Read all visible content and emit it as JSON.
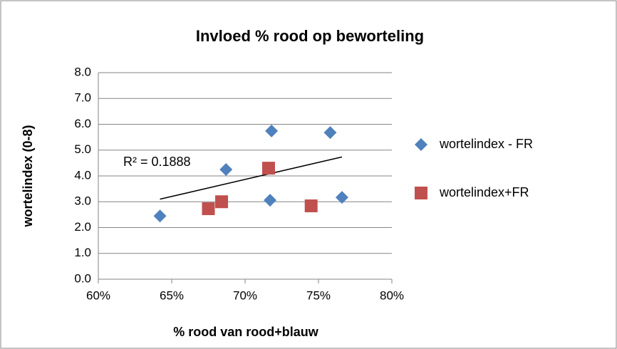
{
  "chart_data": {
    "type": "scatter",
    "title": "Invloed % rood op beworteling",
    "x_label": "% rood van rood+blauw",
    "y_label": "wortelindex (0-8)",
    "annotation": "R² = 0.1888",
    "series": [
      {
        "name": "wortelindex - FR",
        "color": "#4f81bd",
        "marker": "diamond",
        "x": [
          64.2,
          68.7,
          71.8,
          75.8,
          71.7,
          76.6
        ],
        "values": [
          2.45,
          4.25,
          5.74,
          5.68,
          3.06,
          3.17
        ]
      },
      {
        "name": "wortelindex+FR",
        "color": "#c0504d",
        "marker": "square",
        "x": [
          67.5,
          68.4,
          71.6,
          74.5
        ],
        "values": [
          2.73,
          3.0,
          4.3,
          2.84
        ]
      }
    ],
    "xlim": [
      60,
      80
    ],
    "xticks": [
      {
        "value": 60,
        "label": "60%"
      },
      {
        "value": 65,
        "label": "65%"
      },
      {
        "value": 70,
        "label": "70%"
      },
      {
        "value": 75,
        "label": "75%"
      },
      {
        "value": 80,
        "label": "80%"
      }
    ],
    "ylim": [
      0,
      8
    ],
    "yticks": [
      {
        "value": 0,
        "label": "0.0"
      },
      {
        "value": 1,
        "label": "1.0"
      },
      {
        "value": 2,
        "label": "2.0"
      },
      {
        "value": 3,
        "label": "3.0"
      },
      {
        "value": 4,
        "label": "4.0"
      },
      {
        "value": 5,
        "label": "5.0"
      },
      {
        "value": 6,
        "label": "6.0"
      },
      {
        "value": 7,
        "label": "7.0"
      },
      {
        "value": 8,
        "label": "8.0"
      }
    ],
    "grid": true,
    "legend": "right"
  }
}
